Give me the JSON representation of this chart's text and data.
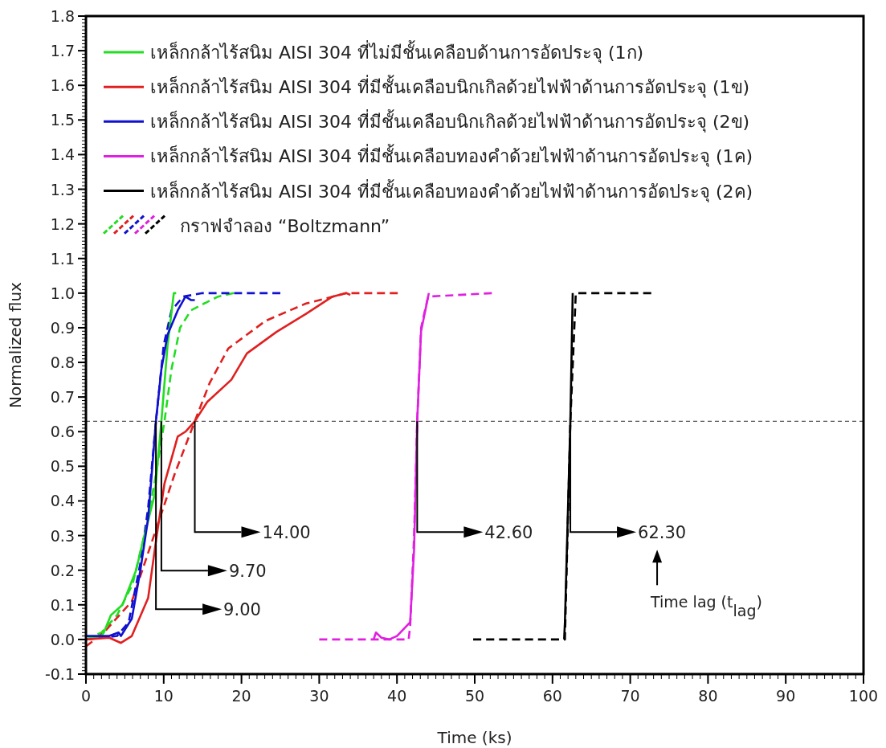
{
  "chart_data": {
    "type": "line",
    "xlabel": "Time (ks)",
    "ylabel": "Normalized flux",
    "xlim": [
      0,
      100
    ],
    "xticks": [
      0,
      10,
      20,
      30,
      40,
      50,
      60,
      70,
      80,
      90,
      100
    ],
    "ylim": [
      -0.1,
      1.8
    ],
    "yticks": [
      -0.1,
      {
        "value": 0,
        "label": "0.0"
      },
      0.1,
      0.2,
      0.3,
      0.4,
      0.5,
      0.6,
      0.7,
      0.8,
      0.9,
      {
        "value": 1,
        "label": "1.0"
      },
      1.1,
      1.2,
      1.3,
      1.4,
      1.5,
      1.6,
      1.7,
      1.8
    ],
    "grid": false,
    "legend": "top left",
    "marker": "none",
    "ref_lines": [
      {
        "axis": "y",
        "value": 0.63,
        "color": "#555555",
        "line_style": "dashed"
      }
    ],
    "series": [
      {
        "name": "เหล็กกล้าไร้สนิม AISI 304 ที่ไม่มีชั้นเคลือบด้านการอัดประจุ (1ก)",
        "color": "#22dd22",
        "line_style": "solid",
        "x": [
          0,
          2,
          2.3,
          3.2,
          4.7,
          6.45,
          7.4,
          8.86,
          9.7,
          10.5,
          11.3,
          11.6
        ],
        "values": [
          0,
          0.01,
          0.02,
          0.07,
          0.1,
          0.2,
          0.29,
          0.42,
          0.63,
          0.85,
          1.0,
          1.0
        ]
      },
      {
        "name": "เหล็กกล้าไร้สนิม AISI 304 ที่มีชั้นเคลือบนิกเกิลด้วยไฟฟ้าด้านการอัดประจุ (1ข)",
        "color": "#e02020",
        "line_style": "solid",
        "x": [
          0,
          3,
          4.5,
          5.9,
          8,
          9.04,
          10.1,
          11.8,
          12.8,
          14,
          15.6,
          18.7,
          20.7,
          24.5,
          28.3,
          31.7,
          33.5,
          34
        ],
        "values": [
          0,
          0.005,
          -0.01,
          0.01,
          0.12,
          0.29,
          0.45,
          0.586,
          0.6,
          0.63,
          0.686,
          0.75,
          0.826,
          0.888,
          0.94,
          0.99,
          1.0,
          0.995
        ]
      },
      {
        "name": "เหล็กกล้าไร้สนิม AISI 304 ที่มีชั้นเคลือบนิกเกิลด้วยไฟฟ้าด้านการอัดประจุ (2ข)",
        "color": "#1010d0",
        "line_style": "solid",
        "x": [
          0,
          3,
          4.2,
          4.5,
          5.9,
          7,
          8,
          9,
          9.7,
          10.5,
          11.8,
          12.8,
          13.5,
          14
        ],
        "values": [
          0.01,
          0.01,
          0.02,
          0.01,
          0.06,
          0.2,
          0.35,
          0.63,
          0.78,
          0.88,
          0.95,
          0.99,
          0.98,
          0.98
        ]
      },
      {
        "name": "เหล็กกล้าไร้สนิม AISI 304 ที่มีชั้นเคลือบทองคำด้วยไฟฟ้าด้านการอัดประจุ (1ค)",
        "color": "#e020e0",
        "line_style": "solid",
        "x": [
          37,
          37.3,
          38,
          39,
          40,
          41.7,
          42.2,
          42.6,
          43.1,
          44.1
        ],
        "values": [
          0,
          0.02,
          0.005,
          0,
          0.01,
          0.05,
          0.26,
          0.63,
          0.89,
          1.0
        ]
      },
      {
        "name": "เหล็กกล้าไร้สนิม AISI 304 ที่มีชั้นเคลือบทองคำด้วยไฟฟ้าด้านการอัดประจุ (2ค)",
        "color": "#000000",
        "line_style": "solid",
        "x": [
          61.5,
          61.6,
          62.3,
          62.6
        ],
        "values": [
          0,
          0.05,
          0.63,
          1.0
        ]
      },
      {
        "color": "#22dd22",
        "line_style": "dashed",
        "x": [
          0,
          2,
          4,
          6,
          7.5,
          8.8,
          10.1,
          11,
          12.1,
          13.5,
          15.2,
          17,
          19
        ],
        "values": [
          0,
          0.02,
          0.07,
          0.16,
          0.3,
          0.45,
          0.63,
          0.78,
          0.9,
          0.95,
          0.97,
          0.99,
          1.0
        ]
      },
      {
        "color": "#e02020",
        "line_style": "dashed",
        "x": [
          0,
          2.3,
          5.9,
          8,
          11.4,
          14,
          15.9,
          18.3,
          23.1,
          28.3,
          33.5,
          40.1
        ],
        "values": [
          -0.02,
          0.02,
          0.11,
          0.25,
          0.477,
          0.63,
          0.74,
          0.84,
          0.92,
          0.97,
          1.0,
          1.0
        ]
      },
      {
        "color": "#1010d0",
        "line_style": "dashed",
        "x": [
          0,
          4,
          5.5,
          7,
          8,
          9,
          10,
          11,
          12.5,
          15,
          25
        ],
        "values": [
          0,
          0.01,
          0.05,
          0.22,
          0.38,
          0.63,
          0.85,
          0.95,
          0.99,
          1.0,
          1.0
        ]
      },
      {
        "color": "#e020e0",
        "line_style": "dashed",
        "x": [
          30,
          41.5,
          41.7,
          42.2,
          42.6,
          43.1,
          44,
          52.2
        ],
        "values": [
          0,
          0,
          0.04,
          0.3,
          0.63,
          0.9,
          0.99,
          1.0
        ]
      },
      {
        "color": "#000000",
        "line_style": "dashed",
        "x": [
          49.8,
          61.6,
          62.3,
          63,
          72.7
        ],
        "values": [
          0,
          0,
          0.63,
          1.0,
          1.0
        ]
      }
    ],
    "annotations": [
      "กราฟจำลอง “Boltzmann”",
      {
        "text": "14.00",
        "x": 14,
        "y": 0.63
      },
      {
        "text": "9.70",
        "x": 9.7,
        "y": 0.63
      },
      {
        "text": "9.00",
        "x": 9,
        "y": 0.63
      },
      {
        "text": "42.60",
        "x": 42.6,
        "y": 0.63
      },
      {
        "text": "62.30",
        "x": 62.3,
        "y": 0.63
      },
      "Time lag (t$_{lag}$)"
    ]
  }
}
